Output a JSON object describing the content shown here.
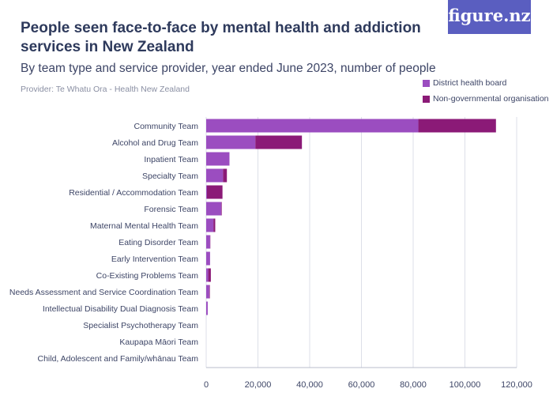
{
  "header": {
    "title": "People seen face-to-face by mental health and addiction services in New Zealand",
    "subtitle": "By team type and service provider, year ended June 2023, number of people",
    "provider": "Provider: Te Whatu Ora - Health New Zealand",
    "logo": "figure.nz"
  },
  "colors": {
    "district_health_board": "#9b4dc0",
    "ngo": "#8b1a77",
    "grid": "#dcdfe8",
    "axis_text": "#3d4566"
  },
  "chart_data": {
    "type": "bar",
    "orientation": "horizontal",
    "stacked": true,
    "categories": [
      "Community Team",
      "Alcohol and Drug Team",
      "Inpatient Team",
      "Specialty Team",
      "Residential / Accommodation Team",
      "Forensic Team",
      "Maternal Mental Health Team",
      "Eating Disorder Team",
      "Early Intervention Team",
      "Co-Existing Problems Team",
      "Needs Assessment and Service Coordination Team",
      "Intellectual Disability Dual Diagnosis Team",
      "Specialist Psychotherapy Team",
      "Kaupapa Māori Team",
      "Child, Adolescent and Family/whānau Team"
    ],
    "series": [
      {
        "name": "District health board",
        "values": [
          82000,
          19000,
          9000,
          6500,
          300,
          5800,
          2800,
          1500,
          1500,
          800,
          1200,
          600,
          0,
          0,
          0
        ]
      },
      {
        "name": "Non-governmental organisation",
        "values": [
          30000,
          18000,
          0,
          1500,
          6000,
          200,
          700,
          100,
          0,
          1000,
          200,
          0,
          0,
          0,
          0
        ]
      }
    ],
    "xlim": [
      0,
      120000
    ],
    "xticks": [
      0,
      20000,
      40000,
      60000,
      80000,
      100000,
      120000
    ],
    "xtick_labels": [
      "0",
      "20,000",
      "40,000",
      "60,000",
      "80,000",
      "100,000",
      "120,000"
    ],
    "legend_position": "top-right",
    "grid": true
  }
}
